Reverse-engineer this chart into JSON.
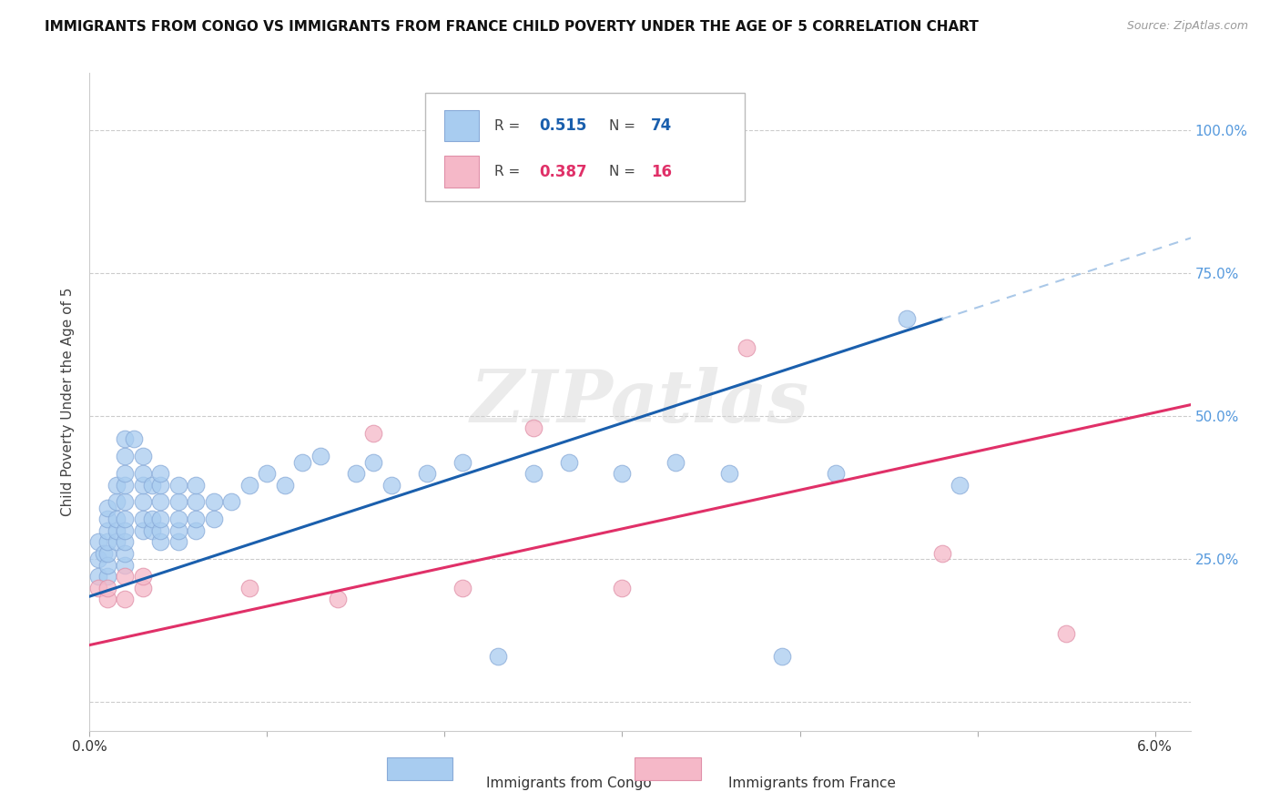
{
  "title": "IMMIGRANTS FROM CONGO VS IMMIGRANTS FROM FRANCE CHILD POVERTY UNDER THE AGE OF 5 CORRELATION CHART",
  "source": "Source: ZipAtlas.com",
  "ylabel": "Child Poverty Under the Age of 5",
  "xlim": [
    0.0,
    0.062
  ],
  "ylim": [
    -0.05,
    1.1
  ],
  "congo_R": 0.515,
  "congo_N": 74,
  "france_R": 0.387,
  "france_N": 16,
  "congo_color": "#a8ccf0",
  "france_color": "#f5b8c8",
  "congo_line_color": "#1a5fad",
  "france_line_color": "#e03068",
  "watermark": "ZIPatlas",
  "congo_line_x0": 0.0,
  "congo_line_y0": 0.185,
  "congo_line_x1": 0.048,
  "congo_line_y1": 0.67,
  "france_line_x0": 0.0,
  "france_line_y0": 0.1,
  "france_line_x1": 0.062,
  "france_line_y1": 0.52,
  "congo_x": [
    0.0005,
    0.0005,
    0.0005,
    0.0008,
    0.001,
    0.001,
    0.001,
    0.001,
    0.001,
    0.001,
    0.001,
    0.0015,
    0.0015,
    0.0015,
    0.0015,
    0.0015,
    0.002,
    0.002,
    0.002,
    0.002,
    0.002,
    0.002,
    0.002,
    0.002,
    0.002,
    0.002,
    0.0025,
    0.003,
    0.003,
    0.003,
    0.003,
    0.003,
    0.003,
    0.0035,
    0.0035,
    0.0035,
    0.004,
    0.004,
    0.004,
    0.004,
    0.004,
    0.004,
    0.005,
    0.005,
    0.005,
    0.005,
    0.005,
    0.006,
    0.006,
    0.006,
    0.006,
    0.007,
    0.007,
    0.008,
    0.009,
    0.01,
    0.011,
    0.012,
    0.013,
    0.015,
    0.016,
    0.017,
    0.019,
    0.021,
    0.023,
    0.025,
    0.027,
    0.03,
    0.033,
    0.036,
    0.039,
    0.042,
    0.046,
    0.049
  ],
  "congo_y": [
    0.22,
    0.25,
    0.28,
    0.26,
    0.22,
    0.24,
    0.26,
    0.28,
    0.3,
    0.32,
    0.34,
    0.28,
    0.3,
    0.32,
    0.35,
    0.38,
    0.24,
    0.26,
    0.28,
    0.3,
    0.32,
    0.35,
    0.38,
    0.4,
    0.43,
    0.46,
    0.46,
    0.3,
    0.32,
    0.35,
    0.38,
    0.4,
    0.43,
    0.3,
    0.32,
    0.38,
    0.28,
    0.3,
    0.32,
    0.35,
    0.38,
    0.4,
    0.28,
    0.3,
    0.32,
    0.35,
    0.38,
    0.3,
    0.32,
    0.35,
    0.38,
    0.32,
    0.35,
    0.35,
    0.38,
    0.4,
    0.38,
    0.42,
    0.43,
    0.4,
    0.42,
    0.38,
    0.4,
    0.42,
    0.08,
    0.4,
    0.42,
    0.4,
    0.42,
    0.4,
    0.08,
    0.4,
    0.67,
    0.38
  ],
  "france_x": [
    0.0005,
    0.001,
    0.001,
    0.002,
    0.002,
    0.003,
    0.003,
    0.009,
    0.014,
    0.016,
    0.021,
    0.025,
    0.03,
    0.037,
    0.048,
    0.055
  ],
  "france_y": [
    0.2,
    0.18,
    0.2,
    0.18,
    0.22,
    0.2,
    0.22,
    0.2,
    0.18,
    0.47,
    0.2,
    0.48,
    0.2,
    0.62,
    0.26,
    0.12
  ],
  "grid_color": "#cccccc",
  "right_label_color": "#5599dd"
}
